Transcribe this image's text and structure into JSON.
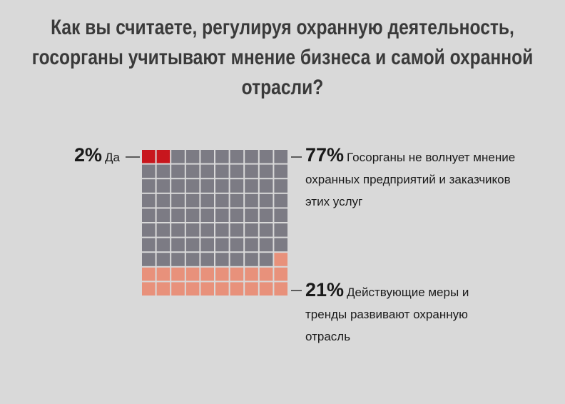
{
  "chart_data": {
    "type": "waffle",
    "title": "Как вы считаете, регулируя охранную деятельность, госорганы учитывают мнение бизнеса и самой охранной отрасли?",
    "categories": [
      "Да",
      "Госорганы не волнует мнение охранных предприятий и заказчиков этих услуг",
      "Действующие меры и тренды развивают охранную отрасль"
    ],
    "values": [
      2,
      77,
      21
    ],
    "value_labels": [
      "2%",
      "77%",
      "21%"
    ],
    "colors": [
      "#c8161d",
      "#7c7b84",
      "#e8917b"
    ]
  }
}
